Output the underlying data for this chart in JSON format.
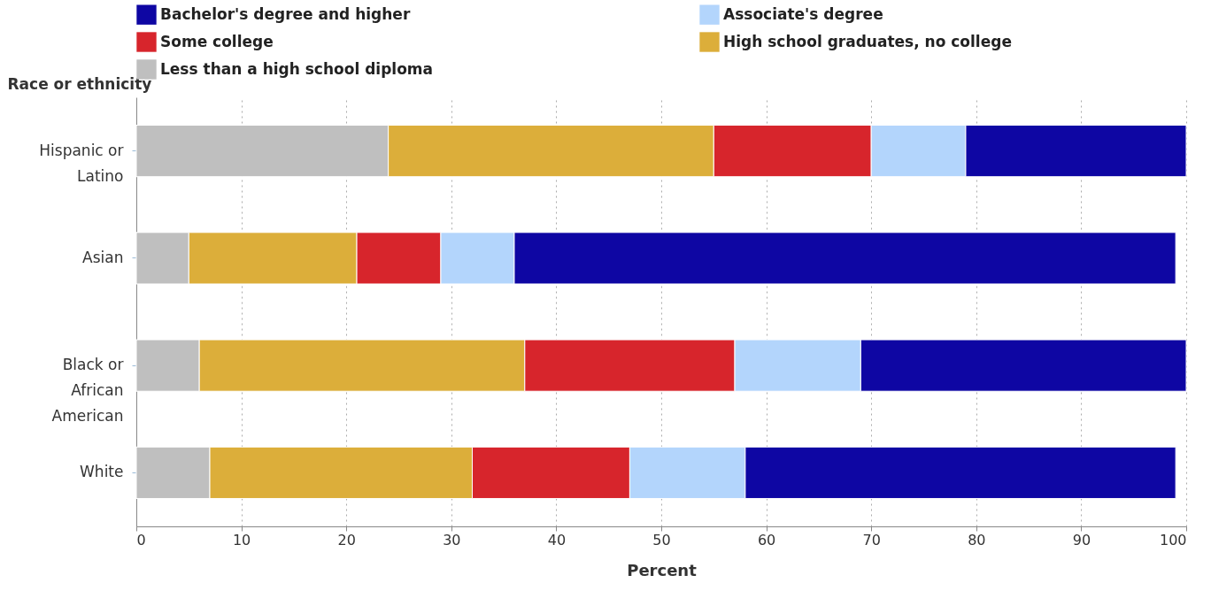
{
  "chart_data": {
    "type": "bar",
    "orientation": "horizontal",
    "stacked": true,
    "categories": [
      "Hispanic or Latino",
      "Asian",
      "Black or African American",
      "White"
    ],
    "series": [
      {
        "name": "Less than a high school diploma",
        "color": "#bfbfbf",
        "values": [
          24,
          5,
          6,
          7
        ]
      },
      {
        "name": "High school graduates, no college",
        "color": "#dcae3a",
        "values": [
          31,
          16,
          31,
          25
        ]
      },
      {
        "name": "Some college",
        "color": "#d7252c",
        "values": [
          15,
          8,
          20,
          15
        ]
      },
      {
        "name": "Associate's degree",
        "color": "#b3d5fc",
        "values": [
          9,
          7,
          12,
          11
        ]
      },
      {
        "name": "Bachelor's degree and higher",
        "color": "#0e06a3",
        "values": [
          21,
          63,
          31,
          41
        ]
      }
    ],
    "xlabel": "Percent",
    "ylabel": "Race or ethnicity",
    "xlim": [
      0,
      100
    ],
    "xticks": [
      0,
      10,
      20,
      30,
      40,
      50,
      60,
      70,
      80,
      90,
      100
    ],
    "grid": "x",
    "legend": "top"
  }
}
